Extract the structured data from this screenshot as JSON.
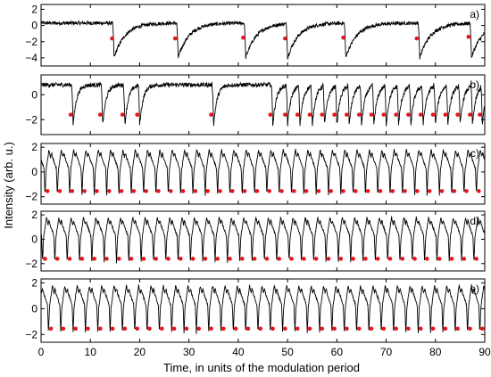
{
  "chart_data": {
    "type": "line",
    "xlabel": "Time, in units of the modulation period",
    "ylabel": "Intensity (arb. u.)",
    "xlim": [
      0,
      90
    ],
    "x_ticks": [
      0,
      10,
      20,
      30,
      40,
      50,
      60,
      70,
      80,
      90
    ],
    "marker_color": "#e8141c",
    "line_color": "#000000",
    "panels": [
      {
        "label": "a)",
        "ylim": [
          -5,
          2.6
        ],
        "y_ticks": [
          2,
          0,
          -2,
          -4
        ],
        "baseline": 0.3,
        "dip_min": -4.0,
        "dip_times": [
          14.8,
          27.8,
          41.5,
          50.0,
          61.8,
          76.8,
          87.3
        ],
        "markers": [
          {
            "x": 14.4,
            "y": -1.6
          },
          {
            "x": 27.2,
            "y": -1.6
          },
          {
            "x": 41.0,
            "y": -1.5
          },
          {
            "x": 49.5,
            "y": -1.6
          },
          {
            "x": 61.3,
            "y": -1.5
          },
          {
            "x": 76.2,
            "y": -1.6
          },
          {
            "x": 86.7,
            "y": -1.4
          }
        ]
      },
      {
        "label": "b)",
        "ylim": [
          -3.2,
          1.6
        ],
        "y_ticks": [
          0,
          -2
        ],
        "baseline": 0.8,
        "dip_min": -2.5,
        "dip_times": [
          6.5,
          12.5,
          17.0,
          20.0,
          35.0,
          47.0,
          50.0,
          52.5,
          55.0,
          57.5,
          60.0,
          62.5,
          65.0,
          67.5,
          70.0,
          72.5,
          75.0,
          77.5,
          80.0,
          82.5,
          85.0,
          87.5,
          89.5
        ],
        "markers": [
          {
            "x": 6.0,
            "y": -1.6
          },
          {
            "x": 12.0,
            "y": -1.6
          },
          {
            "x": 16.5,
            "y": -1.6
          },
          {
            "x": 19.5,
            "y": -1.6
          },
          {
            "x": 34.5,
            "y": -1.6
          },
          {
            "x": 46.5,
            "y": -1.6
          },
          {
            "x": 49.5,
            "y": -1.6
          },
          {
            "x": 52.0,
            "y": -1.6
          },
          {
            "x": 54.5,
            "y": -1.6
          },
          {
            "x": 57.0,
            "y": -1.6
          },
          {
            "x": 59.5,
            "y": -1.6
          },
          {
            "x": 62.0,
            "y": -1.6
          },
          {
            "x": 64.5,
            "y": -1.6
          },
          {
            "x": 67.0,
            "y": -1.6
          },
          {
            "x": 69.5,
            "y": -1.6
          },
          {
            "x": 72.0,
            "y": -1.6
          },
          {
            "x": 74.5,
            "y": -1.6
          },
          {
            "x": 77.0,
            "y": -1.6
          },
          {
            "x": 79.5,
            "y": -1.6
          },
          {
            "x": 82.0,
            "y": -1.6
          },
          {
            "x": 84.5,
            "y": -1.6
          },
          {
            "x": 87.0,
            "y": -1.6
          },
          {
            "x": 89.0,
            "y": -1.6
          }
        ]
      },
      {
        "label": "c)",
        "ylim": [
          -2.6,
          2.3
        ],
        "y_ticks": [
          2,
          0,
          -2
        ],
        "period": 2.5,
        "phase": 0.8,
        "marker_y": -1.55,
        "markers_x": [
          1.3,
          3.8,
          6.3,
          8.8,
          11.3,
          13.8,
          16.3,
          18.8,
          21.3,
          23.8,
          26.3,
          28.8,
          31.3,
          33.8,
          36.3,
          38.8,
          41.3,
          43.8,
          46.3,
          48.8,
          51.3,
          53.8,
          56.3,
          58.8,
          61.3,
          63.8,
          66.3,
          68.8,
          71.3,
          73.8,
          76.3,
          78.8,
          81.3,
          83.8,
          86.3,
          88.8
        ]
      },
      {
        "label": "d)",
        "ylim": [
          -2.6,
          2.3
        ],
        "y_ticks": [
          2,
          0,
          -2
        ],
        "period": 2.5,
        "phase": 0.3,
        "marker_y": -1.6,
        "markers_x": [
          0.8,
          3.3,
          5.8,
          8.3,
          10.8,
          13.3,
          15.8,
          18.3,
          20.8,
          23.3,
          25.8,
          28.3,
          30.8,
          33.3,
          35.8,
          38.3,
          40.8,
          43.3,
          45.8,
          48.3,
          50.8,
          53.3,
          55.8,
          58.3,
          60.8,
          63.3,
          65.8,
          68.3,
          70.8,
          73.3,
          75.8,
          78.3,
          80.8,
          83.3,
          85.8,
          88.3
        ]
      },
      {
        "label": "e)",
        "ylim": [
          -2.6,
          2.3
        ],
        "y_ticks": [
          2,
          0,
          -2
        ],
        "period": 2.5,
        "phase": 1.5,
        "marker_y": -1.55,
        "markers_x": [
          2.0,
          4.5,
          7.0,
          9.5,
          12.0,
          14.5,
          17.0,
          19.5,
          22.0,
          24.5,
          27.0,
          29.5,
          32.0,
          34.5,
          37.0,
          39.5,
          42.0,
          44.5,
          47.0,
          49.5,
          52.0,
          54.5,
          57.0,
          59.5,
          62.0,
          64.5,
          67.0,
          69.5,
          72.0,
          74.5,
          77.0,
          79.5,
          82.0,
          84.5,
          87.0,
          89.5
        ]
      }
    ]
  }
}
